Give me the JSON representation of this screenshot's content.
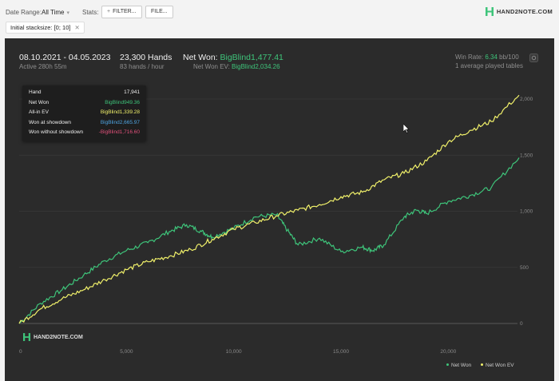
{
  "toolbar": {
    "date_range_label": "Date Range:",
    "date_range_value": "All Time",
    "stats_label": "Stats:",
    "filter_button": "FILTER...",
    "file_button": "FILE...",
    "filter_chip": "Initial stacksize: [0; 10]",
    "logo_text": "HAND2NOTE.COM"
  },
  "header": {
    "date_span": "08.10.2021 - 04.05.2023",
    "active": "Active 280h 55m",
    "hands": "23,300 Hands",
    "hands_per_hour": "83 hands / hour",
    "net_won_label": "Net Won:",
    "net_won_value": "BigBlind1,477.41",
    "net_won_ev_label": "Net Won  EV:",
    "net_won_ev_value": "BigBlind2,034.26",
    "win_rate_label": "Win Rate:",
    "win_rate_value": "6.34",
    "win_rate_unit": "bb/100",
    "tables": "1 average played tables"
  },
  "tooltip": {
    "rows": [
      {
        "label": "Hand",
        "value": "17,941",
        "color": "#eeeeee"
      },
      {
        "label": "Net Won",
        "value": "BigBlind949.36",
        "color": "#3ec47a"
      },
      {
        "label": "All-in EV",
        "value": "BigBlind1,339.28",
        "color": "#f0f06a"
      },
      {
        "label": "Won at showdown",
        "value": "BigBlind2,665.97",
        "color": "#4da3e0"
      },
      {
        "label": "Won without showdown",
        "value": "-BigBlind1,716.60",
        "color": "#e0507a"
      }
    ]
  },
  "watermark": "HAND2NOTE.COM",
  "colors": {
    "net_won": "#3ec47a",
    "net_won_ev": "#f0f06a",
    "panel": "#2b2b2b"
  },
  "chart_data": {
    "type": "line",
    "x_ticks": [
      "0",
      "5,000",
      "10,000",
      "15,000",
      "20,000"
    ],
    "y_ticks": [
      "0",
      "500",
      "1,000",
      "1,500",
      "2,000"
    ],
    "xlim": [
      0,
      23300
    ],
    "ylim": [
      -20,
      2100
    ],
    "series": [
      {
        "name": "Net Won",
        "color": "#3ec47a",
        "x": [
          0,
          1000,
          2000,
          3000,
          4000,
          5000,
          6000,
          7000,
          7800,
          8500,
          9000,
          10000,
          11000,
          12000,
          12500,
          13000,
          14000,
          15000,
          16000,
          16500,
          17000,
          17941,
          18500,
          19000,
          20000,
          21000,
          22000,
          23300
        ],
        "y": [
          0,
          180,
          300,
          430,
          560,
          650,
          720,
          820,
          880,
          820,
          770,
          850,
          950,
          970,
          830,
          700,
          760,
          640,
          680,
          650,
          700,
          949,
          1010,
          980,
          1090,
          1140,
          1210,
          1477
        ]
      },
      {
        "name": "Net Won  EV",
        "color": "#f0f06a",
        "x": [
          0,
          1000,
          2000,
          3000,
          4000,
          5000,
          6000,
          7000,
          8000,
          9000,
          10000,
          11000,
          12000,
          13000,
          14000,
          15000,
          16000,
          17000,
          17941,
          19000,
          20000,
          21000,
          22000,
          23300
        ],
        "y": [
          0,
          130,
          220,
          300,
          390,
          480,
          550,
          600,
          660,
          750,
          840,
          900,
          960,
          1010,
          1060,
          1130,
          1170,
          1280,
          1339,
          1450,
          1620,
          1720,
          1800,
          2034
        ]
      }
    ]
  }
}
